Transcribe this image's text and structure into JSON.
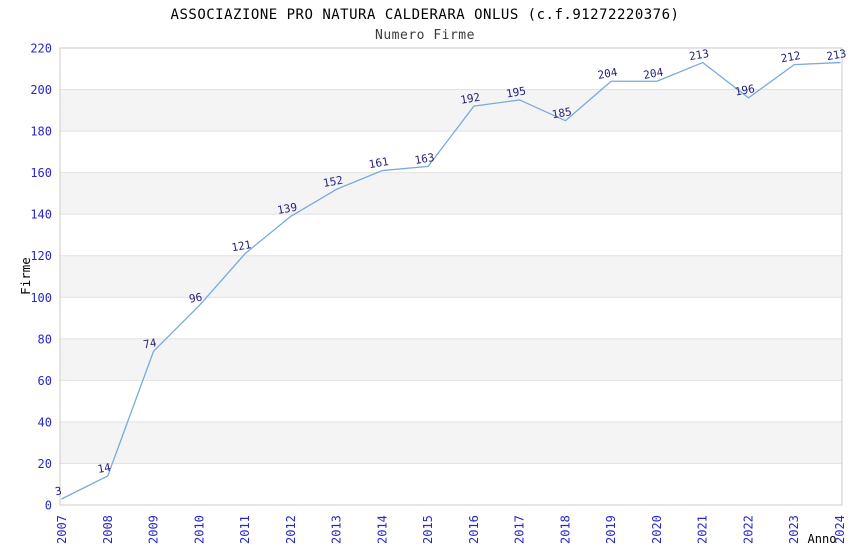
{
  "chart_data": {
    "type": "line",
    "title": "ASSOCIAZIONE PRO NATURA CALDERARA ONLUS (c.f.91272220376)",
    "subtitle": "Numero Firme",
    "xlabel": "Anno",
    "ylabel": "Firme",
    "categories": [
      "2007",
      "2008",
      "2009",
      "2010",
      "2011",
      "2012",
      "2013",
      "2014",
      "2015",
      "2016",
      "2017",
      "2018",
      "2019",
      "2020",
      "2021",
      "2022",
      "2023",
      "2024"
    ],
    "series": [
      {
        "name": "Numero Firme",
        "values": [
          3,
          14,
          74,
          96,
          121,
          139,
          152,
          161,
          163,
          192,
          195,
          185,
          204,
          204,
          213,
          196,
          212,
          213
        ]
      }
    ],
    "ylim": [
      0,
      220
    ],
    "ytick_step": 20,
    "grid": "horizontal-alternating-bands",
    "legend": "none",
    "point_labels_visible": true,
    "x_tick_rotation_deg": -90,
    "point_label_rotation_deg": -10
  },
  "colors": {
    "line": "#78AADE",
    "data_label": "#232378",
    "tick_label": "#2828C8",
    "axis_title": "#000000",
    "band": "#F4F4F4",
    "grid": "#E2E2E2",
    "border": "#CBCBCB",
    "title": "#000000",
    "subtitle": "#3A3A3A",
    "background": "#FFFFFF"
  }
}
